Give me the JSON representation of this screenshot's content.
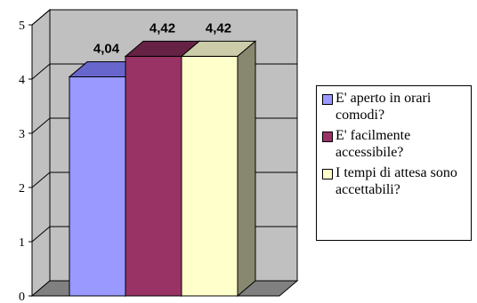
{
  "chart_data": {
    "type": "bar",
    "categories": [
      ""
    ],
    "series": [
      {
        "name": "E' aperto in orari comodi?",
        "values": [
          4.04
        ],
        "label": "4,04",
        "color": "#9999ff",
        "top_color": "#6666cc",
        "side_color": "#6666aa"
      },
      {
        "name": "E' facilmente accessibile?",
        "values": [
          4.42
        ],
        "label": "4,42",
        "color": "#993366",
        "top_color": "#662244",
        "side_color": "#662244"
      },
      {
        "name": "I tempi di attesa sono accettabili?",
        "values": [
          4.42
        ],
        "label": "4,42",
        "color": "#ffffcc",
        "top_color": "#ccccaa",
        "side_color": "#888870"
      }
    ],
    "ylim": [
      0,
      5
    ],
    "yticks": [
      "0",
      "1",
      "2",
      "3",
      "4",
      "5"
    ],
    "grid": true,
    "legend_position": "right",
    "wall_color": "#c0c0c0",
    "floor_color": "#808080"
  }
}
